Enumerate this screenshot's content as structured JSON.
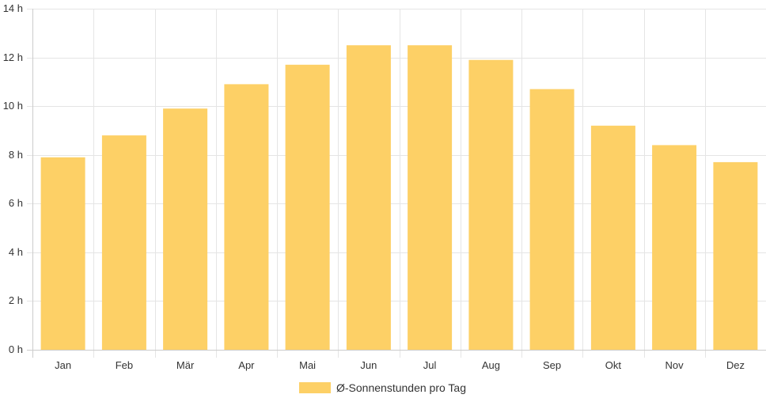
{
  "chart_data": {
    "type": "bar",
    "categories": [
      "Jan",
      "Feb",
      "Mär",
      "Apr",
      "Mai",
      "Jun",
      "Jul",
      "Aug",
      "Sep",
      "Okt",
      "Nov",
      "Dez"
    ],
    "series": [
      {
        "name": "Ø-Sonnenstunden pro Tag",
        "values": [
          7.9,
          8.8,
          9.9,
          10.9,
          11.7,
          12.5,
          12.5,
          11.9,
          10.7,
          9.2,
          8.4,
          7.7
        ],
        "color": "#fdd066"
      }
    ],
    "ylim": [
      0,
      14
    ],
    "yticks": [
      0,
      2,
      4,
      6,
      8,
      10,
      12,
      14
    ],
    "ytick_labels": [
      "0 h",
      "2 h",
      "4 h",
      "6 h",
      "8 h",
      "10 h",
      "12 h",
      "14 h"
    ],
    "grid": true,
    "legend_position": "bottom"
  }
}
